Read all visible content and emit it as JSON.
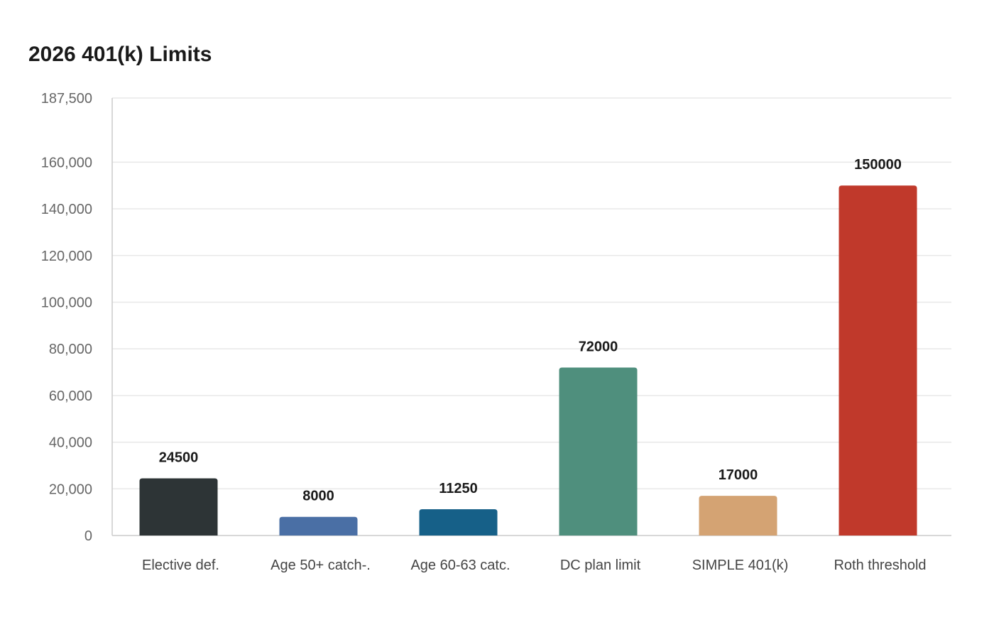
{
  "chart_data": {
    "type": "bar",
    "title": "2026 401(k) Limits",
    "xlabel": "",
    "ylabel": "",
    "categories": [
      "Elective def.",
      "Age 50+ catch-.",
      "Age 60-63 catc.",
      "DC plan limit",
      "SIMPLE 401(k)",
      "Roth threshold"
    ],
    "values": [
      24500,
      8000,
      11250,
      72000,
      17000,
      150000
    ],
    "data_labels": [
      "24500",
      "8000",
      "11250",
      "72000",
      "17000",
      "150000"
    ],
    "colors": [
      "#2d3436",
      "#4a6fa5",
      "#166088",
      "#4f8f7d",
      "#d4a373",
      "#c0392b"
    ],
    "ylim": [
      0,
      187500
    ],
    "yticks": [
      0,
      20000,
      40000,
      60000,
      80000,
      100000,
      120000,
      140000,
      160000,
      187500
    ],
    "ytick_labels": [
      "0",
      "20,000",
      "40,000",
      "60,000",
      "80,000",
      "100,000",
      "120,000",
      "140,000",
      "160,000",
      "187,500"
    ],
    "grid": true,
    "legend": "none"
  }
}
